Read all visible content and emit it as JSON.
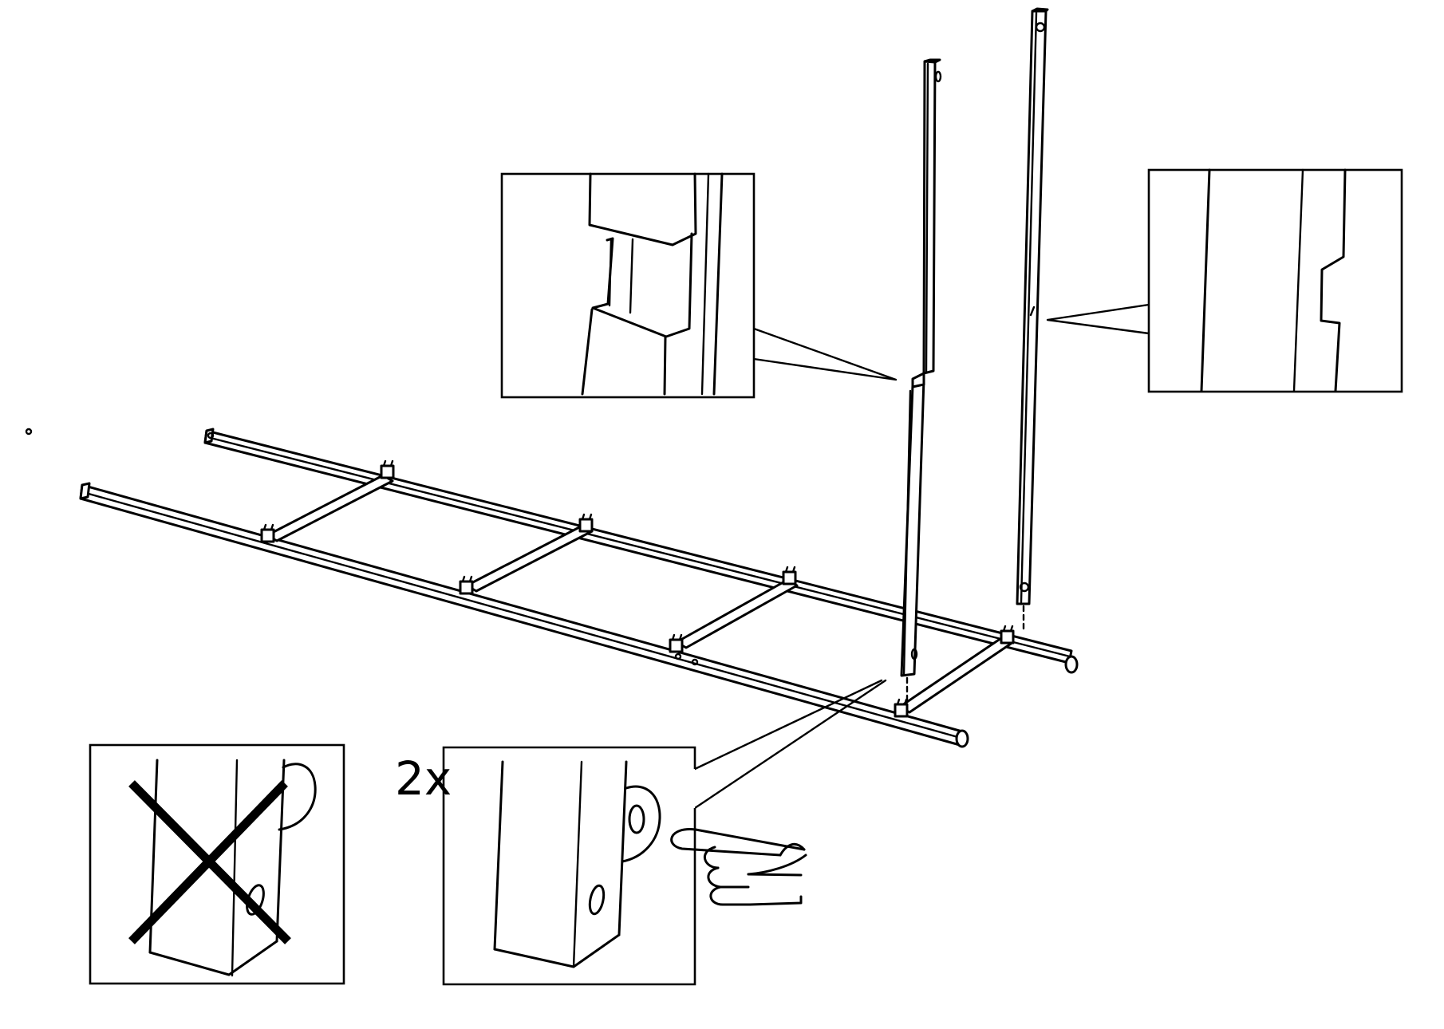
{
  "step": {
    "quantity_label": "2x"
  },
  "palette": {
    "line": "#000000",
    "background": "#ffffff"
  },
  "icons": {
    "pointing_hand": "pointing-hand-icon",
    "prohibited": "cross-x-icon"
  }
}
